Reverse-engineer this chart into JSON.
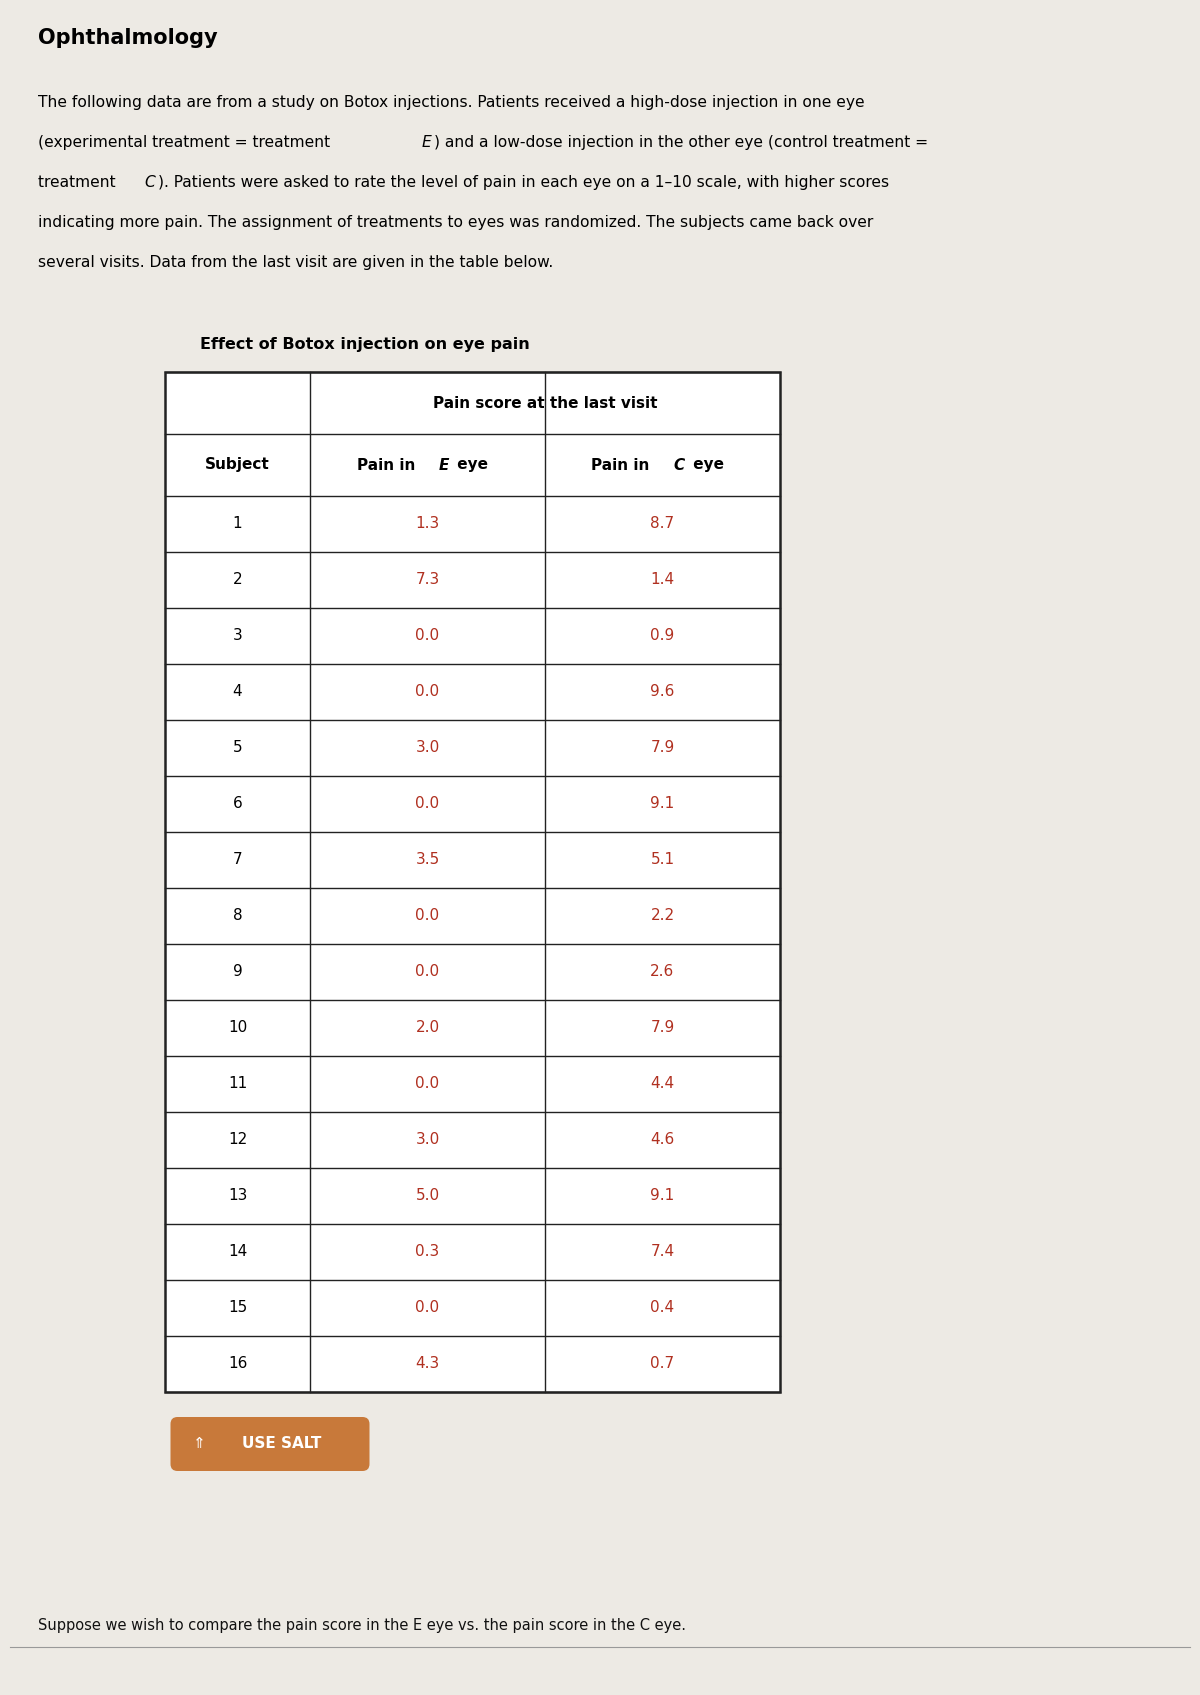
{
  "title": "Ophthalmology",
  "para_lines": [
    [
      [
        "The following data are from a study on Botox injections. Patients received a high-dose injection in one eye",
        false
      ]
    ],
    [
      [
        "(experimental treatment = treatment ",
        false
      ],
      [
        "E",
        true
      ],
      [
        ") and a low-dose injection in the other eye (control treatment =",
        false
      ]
    ],
    [
      [
        "treatment ",
        false
      ],
      [
        "C",
        true
      ],
      [
        "). Patients were asked to rate the level of pain in each eye on a 1–10 scale, with higher scores",
        false
      ]
    ],
    [
      [
        "indicating more pain. The assignment of treatments to eyes was randomized. The subjects came back over",
        false
      ]
    ],
    [
      [
        "several visits. Data from the last visit are given in the table below.",
        false
      ]
    ]
  ],
  "table_title": "Effect of Botox injection on eye pain",
  "col_header_main": "Pain score at the last visit",
  "col_header_subject": "Subject",
  "col_header_e": "Pain in E eye",
  "col_header_c": "Pain in C eye",
  "subjects": [
    1,
    2,
    3,
    4,
    5,
    6,
    7,
    8,
    9,
    10,
    11,
    12,
    13,
    14,
    15,
    16
  ],
  "pain_e": [
    1.3,
    7.3,
    0.0,
    0.0,
    3.0,
    0.0,
    3.5,
    0.0,
    0.0,
    2.0,
    0.0,
    3.0,
    5.0,
    0.3,
    0.0,
    4.3
  ],
  "pain_c": [
    8.7,
    1.4,
    0.9,
    9.6,
    7.9,
    9.1,
    5.1,
    2.2,
    2.6,
    7.9,
    4.4,
    4.6,
    9.1,
    7.4,
    0.4,
    0.7
  ],
  "use_salt_text": "USE SALT",
  "bottom_text": "Suppose we wish to compare the pain score in the E eye vs. the pain score in the C eye.",
  "bg_color": "#edeae4",
  "data_color": "#b03020",
  "header_color": "#000000",
  "subject_color": "#000000",
  "table_border_color": "#222222",
  "table_bg": "#ffffff",
  "salt_bg_color": "#c8793a",
  "salt_text_color": "#ffffff",
  "title_fontsize": 15,
  "para_fontsize": 11.2,
  "table_title_fontsize": 11.5,
  "header_fontsize": 11,
  "data_fontsize": 11
}
